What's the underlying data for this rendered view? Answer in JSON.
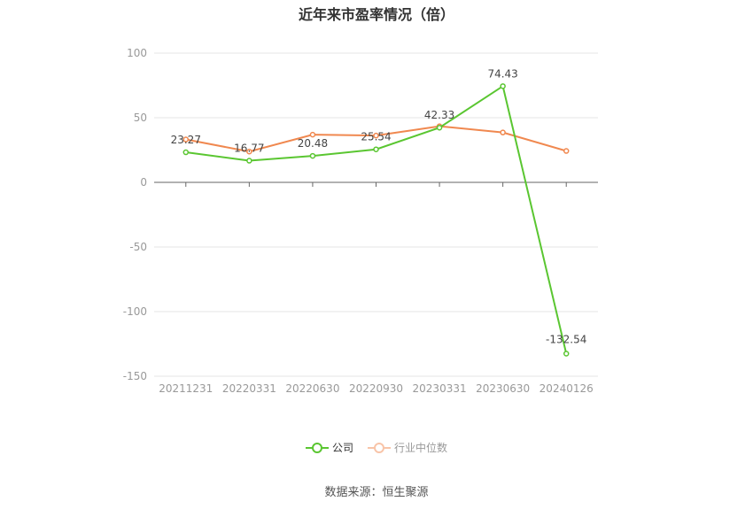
{
  "chart_data": {
    "type": "line",
    "title": "近年来市盈率情况（倍）",
    "categories": [
      "20211231",
      "20220331",
      "20220630",
      "20220930",
      "20230331",
      "20230630",
      "20240126"
    ],
    "ylim": [
      -150,
      100
    ],
    "yticks": [
      100,
      50,
      0,
      -50,
      -100,
      -150
    ],
    "grid": true,
    "legend_position": "bottom",
    "series": [
      {
        "name": "公司",
        "color": "#5ac631",
        "active": true,
        "values": [
          23.27,
          16.77,
          20.48,
          25.54,
          42.33,
          74.43,
          -132.54
        ],
        "labels": [
          "23.27",
          "16.77",
          "20.48",
          "25.54",
          "42.33",
          "74.43",
          "-132.54"
        ]
      },
      {
        "name": "行业中位数",
        "color": "#f0884f",
        "active": false,
        "values": [
          33.2,
          23.8,
          36.9,
          36.2,
          43.4,
          38.6,
          24.3
        ]
      }
    ]
  },
  "source": "数据来源：恒生聚源"
}
